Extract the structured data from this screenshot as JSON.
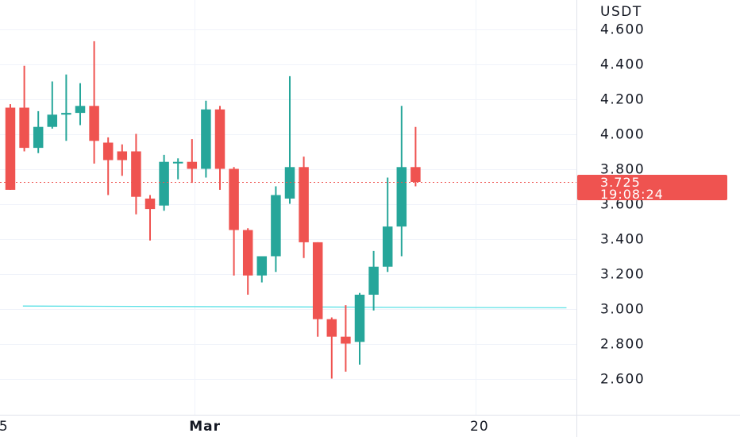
{
  "chart_data": {
    "type": "candlestick",
    "currency": "USDT",
    "ylim": [
      2.45,
      4.69
    ],
    "y_ticks": [
      "4.600",
      "4.400",
      "4.200",
      "4.000",
      "3.800",
      "3.600",
      "3.400",
      "3.200",
      "3.000",
      "2.800",
      "2.600"
    ],
    "y_tick_values": [
      4.6,
      4.4,
      4.2,
      4.0,
      3.8,
      3.6,
      3.4,
      3.2,
      3.0,
      2.8,
      2.6
    ],
    "x_labels": [
      {
        "text": "5",
        "index": -0.8,
        "bold": false
      },
      {
        "text": "Mar",
        "index": 12.8,
        "bold": true
      },
      {
        "text": "20",
        "index": 32.9,
        "bold": false
      }
    ],
    "vertical_grid_indices": [
      13.2,
      33.3
    ],
    "candles": [
      {
        "o": 4.15,
        "h": 4.17,
        "l": 3.68,
        "c": 3.68
      },
      {
        "o": 4.15,
        "h": 4.39,
        "l": 3.9,
        "c": 3.92
      },
      {
        "o": 3.92,
        "h": 4.13,
        "l": 3.89,
        "c": 4.04
      },
      {
        "o": 4.04,
        "h": 4.3,
        "l": 4.03,
        "c": 4.11
      },
      {
        "o": 4.11,
        "h": 4.34,
        "l": 3.96,
        "c": 4.12
      },
      {
        "o": 4.12,
        "h": 4.29,
        "l": 4.05,
        "c": 4.16
      },
      {
        "o": 4.16,
        "h": 4.53,
        "l": 3.83,
        "c": 3.96
      },
      {
        "o": 3.95,
        "h": 3.98,
        "l": 3.65,
        "c": 3.85
      },
      {
        "o": 3.9,
        "h": 3.94,
        "l": 3.76,
        "c": 3.85
      },
      {
        "o": 3.9,
        "h": 4.0,
        "l": 3.54,
        "c": 3.64
      },
      {
        "o": 3.63,
        "h": 3.65,
        "l": 3.39,
        "c": 3.57
      },
      {
        "o": 3.59,
        "h": 3.88,
        "l": 3.56,
        "c": 3.84
      },
      {
        "o": 3.84,
        "h": 3.86,
        "l": 3.74,
        "c": 3.84
      },
      {
        "o": 3.84,
        "h": 3.97,
        "l": 3.72,
        "c": 3.8
      },
      {
        "o": 3.8,
        "h": 4.19,
        "l": 3.75,
        "c": 4.14
      },
      {
        "o": 4.14,
        "h": 4.16,
        "l": 3.68,
        "c": 3.8
      },
      {
        "o": 3.8,
        "h": 3.81,
        "l": 3.19,
        "c": 3.45
      },
      {
        "o": 3.45,
        "h": 3.46,
        "l": 3.08,
        "c": 3.19
      },
      {
        "o": 3.19,
        "h": 3.3,
        "l": 3.15,
        "c": 3.3
      },
      {
        "o": 3.3,
        "h": 3.7,
        "l": 3.21,
        "c": 3.65
      },
      {
        "o": 3.63,
        "h": 4.33,
        "l": 3.6,
        "c": 3.81
      },
      {
        "o": 3.81,
        "h": 3.87,
        "l": 3.29,
        "c": 3.38
      },
      {
        "o": 3.38,
        "h": 3.38,
        "l": 2.84,
        "c": 2.94
      },
      {
        "o": 2.94,
        "h": 2.95,
        "l": 2.6,
        "c": 2.84
      },
      {
        "o": 2.84,
        "h": 3.02,
        "l": 2.64,
        "c": 2.8
      },
      {
        "o": 2.81,
        "h": 3.09,
        "l": 2.68,
        "c": 3.08
      },
      {
        "o": 3.08,
        "h": 3.33,
        "l": 2.99,
        "c": 3.24
      },
      {
        "o": 3.24,
        "h": 3.75,
        "l": 3.21,
        "c": 3.47
      },
      {
        "o": 3.47,
        "h": 4.16,
        "l": 3.3,
        "c": 3.81
      },
      {
        "o": 3.81,
        "h": 4.04,
        "l": 3.7,
        "c": 3.725
      }
    ],
    "trend_line": {
      "from_index": 0.9,
      "from_price": 3.015,
      "to_index": 39.8,
      "to_price": 3.005
    },
    "last_price": {
      "value": 3.725,
      "label": "3.725",
      "countdown": "19:08:24"
    },
    "colors": {
      "up": "#26a69a",
      "down": "#ef5350",
      "trend_line": "#5ce1e6",
      "grid": "#f0f3fa",
      "axis_border": "#e0e3eb",
      "price_tag": "#ef5350",
      "text": "#131722"
    }
  }
}
